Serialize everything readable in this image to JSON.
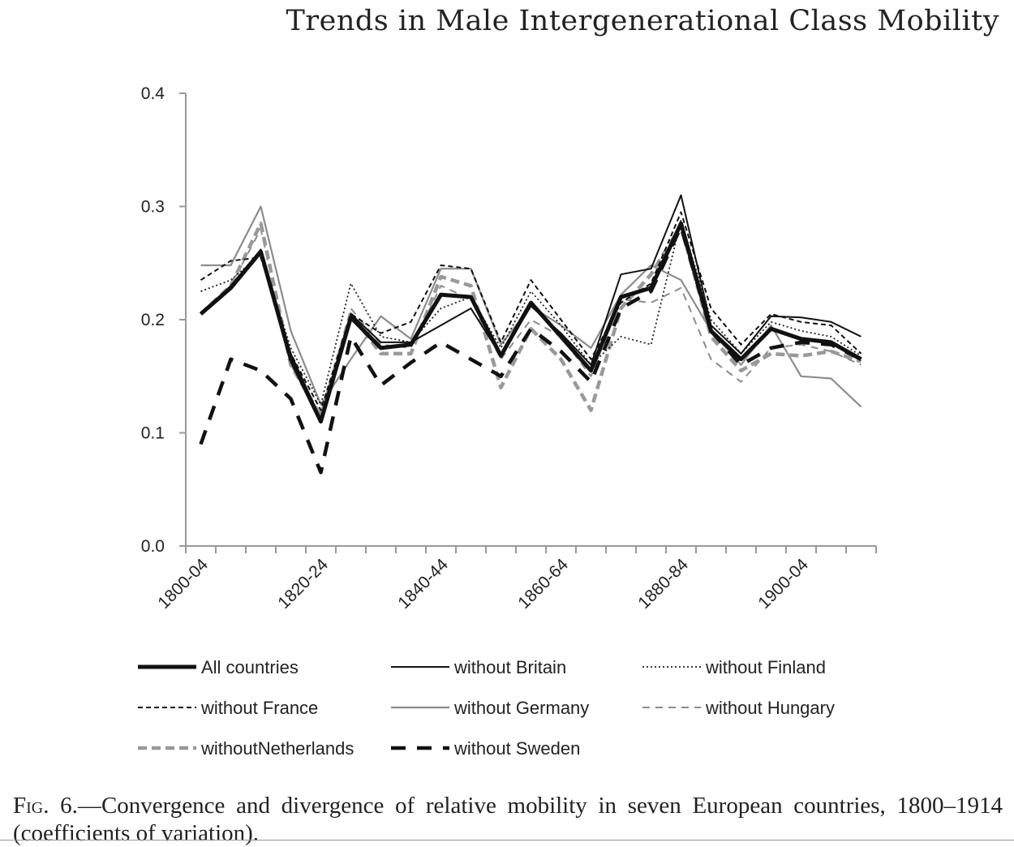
{
  "header": {
    "running_title": "Trends in Male Intergenerational Class Mobility"
  },
  "caption": {
    "lead": "Fig. 6.",
    "text": "—Convergence and divergence of relative mobility in seven European countries, 1800–1914 (coefficients of variation)."
  },
  "chart_data": {
    "type": "line",
    "title": "",
    "xlabel": "",
    "ylabel": "",
    "ylim": [
      0,
      0.4
    ],
    "yticks": [
      "0.0",
      "0.1",
      "0.2",
      "0.3",
      "0.4"
    ],
    "yticks_values": [
      0,
      0.1,
      0.2,
      0.3,
      0.4
    ],
    "x": [
      "1800-04",
      "1805-09",
      "1810-14",
      "1815-19",
      "1820-24",
      "1825-29",
      "1830-34",
      "1835-39",
      "1840-44",
      "1845-49",
      "1850-54",
      "1855-59",
      "1860-64",
      "1865-69",
      "1870-74",
      "1875-79",
      "1880-84",
      "1885-89",
      "1890-94",
      "1895-99",
      "1900-04",
      "1905-09",
      "1910-14"
    ],
    "xtick_labels": [
      "1800-04",
      "1820-24",
      "1840-44",
      "1860-64",
      "1880-84",
      "1900-04"
    ],
    "legend_position": "bottom",
    "series": [
      {
        "name": "All countries",
        "style": "thick-solid",
        "color": "#111111",
        "values": [
          0.205,
          0.228,
          0.26,
          0.165,
          0.11,
          0.202,
          0.175,
          0.178,
          0.222,
          0.22,
          0.168,
          0.215,
          0.185,
          0.155,
          0.22,
          0.228,
          0.285,
          0.19,
          0.165,
          0.192,
          0.183,
          0.18,
          0.165
        ]
      },
      {
        "name": "without Britain",
        "style": "thin-solid",
        "color": "#111111",
        "values": [
          0.205,
          0.23,
          0.262,
          0.17,
          0.112,
          0.205,
          0.18,
          0.18,
          0.195,
          0.21,
          0.168,
          0.212,
          0.188,
          0.16,
          0.24,
          0.245,
          0.31,
          0.195,
          0.17,
          0.203,
          0.202,
          0.198,
          0.185
        ]
      },
      {
        "name": "without Finland",
        "style": "dotted",
        "color": "#222222",
        "values": [
          0.225,
          0.235,
          0.258,
          0.175,
          0.125,
          0.232,
          0.185,
          0.18,
          0.21,
          0.22,
          0.175,
          0.225,
          0.195,
          0.16,
          0.185,
          0.178,
          0.288,
          0.2,
          0.17,
          0.198,
          0.19,
          0.185,
          0.168
        ]
      },
      {
        "name": "without France",
        "style": "short-dash",
        "color": "#111111",
        "values": [
          0.235,
          0.252,
          0.255,
          0.17,
          0.12,
          0.205,
          0.188,
          0.198,
          0.248,
          0.245,
          0.18,
          0.235,
          0.2,
          0.165,
          0.215,
          0.232,
          0.295,
          0.21,
          0.178,
          0.205,
          0.198,
          0.195,
          0.17
        ]
      },
      {
        "name": "without Germany",
        "style": "gray-solid",
        "color": "#8c8c8c",
        "values": [
          0.248,
          0.248,
          0.3,
          0.19,
          0.125,
          0.165,
          0.203,
          0.183,
          0.245,
          0.245,
          0.178,
          0.212,
          0.195,
          0.175,
          0.222,
          0.248,
          0.235,
          0.19,
          0.16,
          0.195,
          0.15,
          0.148,
          0.123
        ]
      },
      {
        "name": "without Hungary",
        "style": "gray-dash",
        "color": "#8c8c8c",
        "values": [
          0.205,
          0.23,
          0.28,
          0.16,
          0.115,
          0.21,
          0.178,
          0.175,
          0.23,
          0.218,
          0.165,
          0.2,
          0.185,
          0.15,
          0.218,
          0.215,
          0.228,
          0.165,
          0.145,
          0.175,
          0.178,
          0.172,
          0.16
        ]
      },
      {
        "name": "withoutNetherlands",
        "style": "gray-thick-dash",
        "color": "#999999",
        "values": [
          0.205,
          0.23,
          0.285,
          0.16,
          0.115,
          0.205,
          0.17,
          0.17,
          0.238,
          0.23,
          0.14,
          0.192,
          0.165,
          0.12,
          0.21,
          0.24,
          0.283,
          0.185,
          0.155,
          0.17,
          0.168,
          0.172,
          0.163
        ]
      },
      {
        "name": "without Sweden",
        "style": "thick-dash",
        "color": "#111111",
        "values": [
          0.09,
          0.165,
          0.155,
          0.13,
          0.065,
          0.185,
          0.142,
          0.162,
          0.18,
          0.165,
          0.15,
          0.192,
          0.172,
          0.145,
          0.21,
          0.225,
          0.282,
          0.19,
          0.16,
          0.175,
          0.18,
          0.178,
          0.165
        ]
      }
    ]
  }
}
